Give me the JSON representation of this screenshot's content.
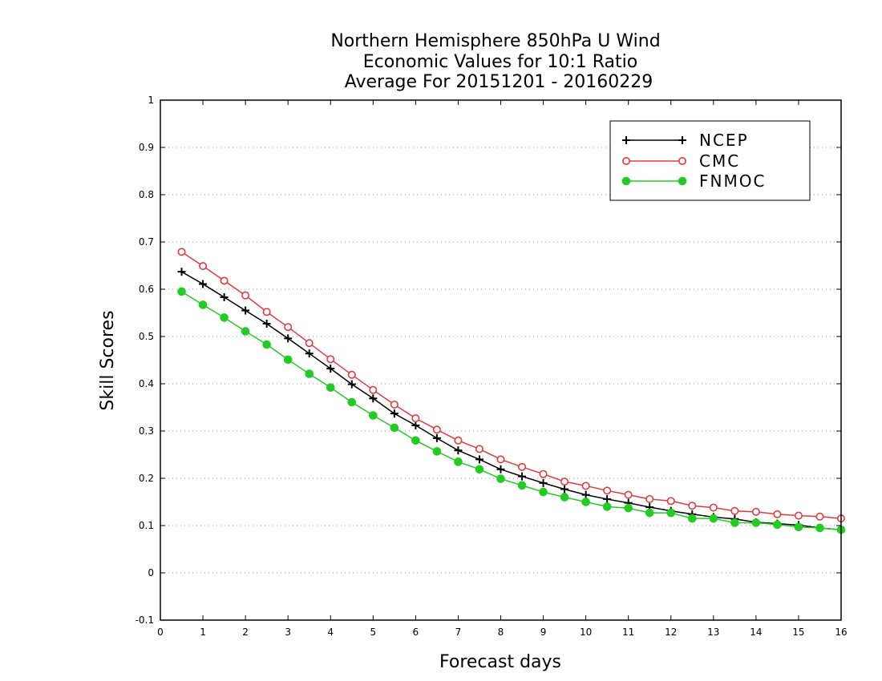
{
  "chart_data": {
    "type": "line",
    "title": [
      "Northern Hemisphere 850hPa U Wind",
      "Economic Values for 10:1 Ratio",
      "Average For 20151201 - 20160229"
    ],
    "xlabel": "Forecast days",
    "ylabel": "Skill Scores",
    "xlim": [
      0,
      16
    ],
    "ylim": [
      -0.1,
      1
    ],
    "xticks": [
      "0",
      "1",
      "2",
      "3",
      "4",
      "5",
      "6",
      "7",
      "8",
      "9",
      "10",
      "11",
      "12",
      "13",
      "14",
      "15",
      "16"
    ],
    "yticks": [
      "-0.1",
      "0",
      "0.1",
      "0.2",
      "0.3",
      "0.4",
      "0.5",
      "0.6",
      "0.7",
      "0.8",
      "0.9",
      "1"
    ],
    "grid": true,
    "legend_position": "top-right",
    "x": [
      0.5,
      1,
      1.5,
      2,
      2.5,
      3,
      3.5,
      4,
      4.5,
      5,
      5.5,
      6,
      6.5,
      7,
      7.5,
      8,
      8.5,
      9,
      9.5,
      10,
      10.5,
      11,
      11.5,
      12,
      12.5,
      13,
      13.5,
      14,
      14.5,
      15,
      15.5,
      16
    ],
    "series": [
      {
        "name": "NCEP",
        "color": "#000000",
        "marker": "plus",
        "values": [
          0.637,
          0.611,
          0.583,
          0.555,
          0.527,
          0.496,
          0.464,
          0.432,
          0.399,
          0.369,
          0.337,
          0.312,
          0.285,
          0.259,
          0.24,
          0.219,
          0.204,
          0.19,
          0.177,
          0.165,
          0.156,
          0.148,
          0.139,
          0.131,
          0.124,
          0.118,
          0.114,
          0.107,
          0.104,
          0.101,
          0.095,
          0.091
        ]
      },
      {
        "name": "CMC",
        "color": "#e8383d",
        "marker": "open-circle",
        "values": [
          0.679,
          0.649,
          0.618,
          0.587,
          0.552,
          0.52,
          0.486,
          0.452,
          0.419,
          0.387,
          0.356,
          0.327,
          0.303,
          0.28,
          0.262,
          0.24,
          0.224,
          0.209,
          0.193,
          0.184,
          0.174,
          0.165,
          0.156,
          0.152,
          0.142,
          0.138,
          0.131,
          0.129,
          0.124,
          0.121,
          0.119,
          0.115
        ]
      },
      {
        "name": "FNMOC",
        "color": "#22cc22",
        "marker": "filled-circle",
        "values": [
          0.595,
          0.567,
          0.54,
          0.511,
          0.483,
          0.451,
          0.421,
          0.392,
          0.361,
          0.333,
          0.307,
          0.28,
          0.257,
          0.235,
          0.219,
          0.199,
          0.185,
          0.171,
          0.16,
          0.15,
          0.14,
          0.137,
          0.127,
          0.127,
          0.115,
          0.115,
          0.106,
          0.106,
          0.102,
          0.097,
          0.095,
          0.091
        ]
      }
    ]
  }
}
